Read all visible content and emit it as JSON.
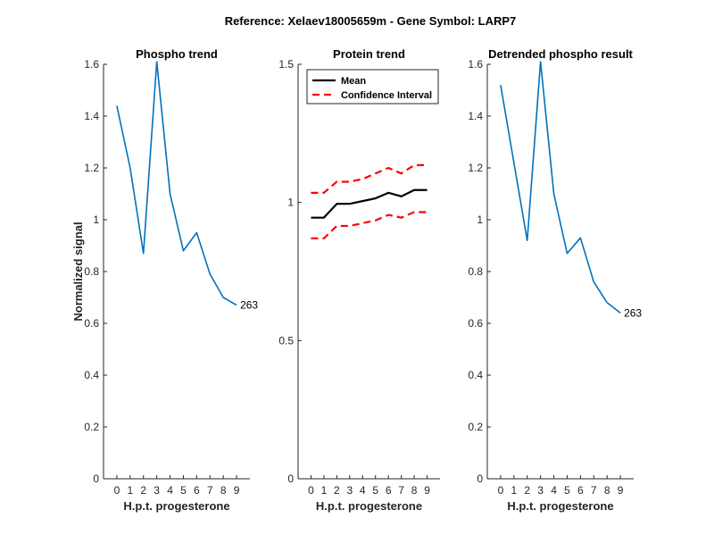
{
  "figure_title": "Reference:  Xelaev18005659m - Gene Symbol:  LARP7",
  "chart_data": [
    {
      "type": "line",
      "title": "Phospho trend",
      "xlabel": "H.p.t. progesterone",
      "ylabel": "Normalized signal",
      "xlim": [
        -1,
        10
      ],
      "ylim": [
        0,
        1.6
      ],
      "xticks": [
        0,
        1,
        2,
        3,
        4,
        5,
        6,
        7,
        8,
        9
      ],
      "yticks": [
        0,
        0.2,
        0.4,
        0.6,
        0.8,
        1.0,
        1.2,
        1.4,
        1.6
      ],
      "ytick_labels": [
        "0",
        "0.2",
        "0.4",
        "0.6",
        "0.8",
        "1",
        "1.2",
        "1.4",
        "1.6"
      ],
      "series": [
        {
          "x": [
            0,
            1,
            2,
            3,
            4,
            5,
            6,
            7,
            8,
            9
          ],
          "values": [
            1.44,
            1.2,
            0.87,
            1.61,
            1.1,
            0.88,
            0.95,
            0.79,
            0.7,
            0.67
          ],
          "color": "#0072BD"
        }
      ],
      "annotation": {
        "text": "263",
        "x": 9,
        "y": 0.67
      }
    },
    {
      "type": "line",
      "title": "Protein trend",
      "xlabel": "H.p.t. progesterone",
      "ylabel": "",
      "xlim": [
        -1,
        10
      ],
      "ylim": [
        0,
        1.5
      ],
      "xticks": [
        0,
        1,
        2,
        3,
        4,
        5,
        6,
        7,
        8,
        9
      ],
      "yticks": [
        0,
        0.5,
        1.0,
        1.5
      ],
      "ytick_labels": [
        "0",
        "0.5",
        "1",
        "1.5"
      ],
      "legend": {
        "placement": "top-left",
        "entries": [
          "Mean",
          "Confidence Interval"
        ]
      },
      "series": [
        {
          "name": "Mean",
          "x": [
            0,
            1,
            2,
            3,
            4,
            5,
            6,
            7,
            8,
            9
          ],
          "values": [
            0.945,
            0.945,
            0.995,
            0.995,
            1.005,
            1.015,
            1.035,
            1.022,
            1.045,
            1.045
          ],
          "color": "#000000",
          "style": "solid"
        },
        {
          "name": "Confidence Interval",
          "x": [
            0,
            1,
            2,
            3,
            4,
            5,
            6,
            7,
            8,
            9
          ],
          "values": [
            1.035,
            1.035,
            1.075,
            1.075,
            1.085,
            1.105,
            1.125,
            1.105,
            1.135,
            1.135
          ],
          "color": "#FF0000",
          "style": "dashed"
        },
        {
          "name": "Confidence Interval",
          "x": [
            0,
            1,
            2,
            3,
            4,
            5,
            6,
            7,
            8,
            9
          ],
          "values": [
            0.87,
            0.87,
            0.915,
            0.915,
            0.925,
            0.935,
            0.955,
            0.945,
            0.965,
            0.965
          ],
          "color": "#FF0000",
          "style": "dashed"
        }
      ]
    },
    {
      "type": "line",
      "title": "Detrended phospho result",
      "xlabel": "H.p.t. progesterone",
      "ylabel": "",
      "xlim": [
        -1,
        10
      ],
      "ylim": [
        0,
        1.6
      ],
      "xticks": [
        0,
        1,
        2,
        3,
        4,
        5,
        6,
        7,
        8,
        9
      ],
      "yticks": [
        0,
        0.2,
        0.4,
        0.6,
        0.8,
        1.0,
        1.2,
        1.4,
        1.6
      ],
      "ytick_labels": [
        "0",
        "0.2",
        "0.4",
        "0.6",
        "0.8",
        "1",
        "1.2",
        "1.4",
        "1.6"
      ],
      "series": [
        {
          "x": [
            0,
            1,
            2,
            3,
            4,
            5,
            6,
            7,
            8,
            9
          ],
          "values": [
            1.52,
            1.22,
            0.92,
            1.61,
            1.1,
            0.87,
            0.93,
            0.76,
            0.68,
            0.64
          ],
          "color": "#0072BD"
        }
      ],
      "annotation": {
        "text": "263",
        "x": 9,
        "y": 0.64
      }
    }
  ]
}
